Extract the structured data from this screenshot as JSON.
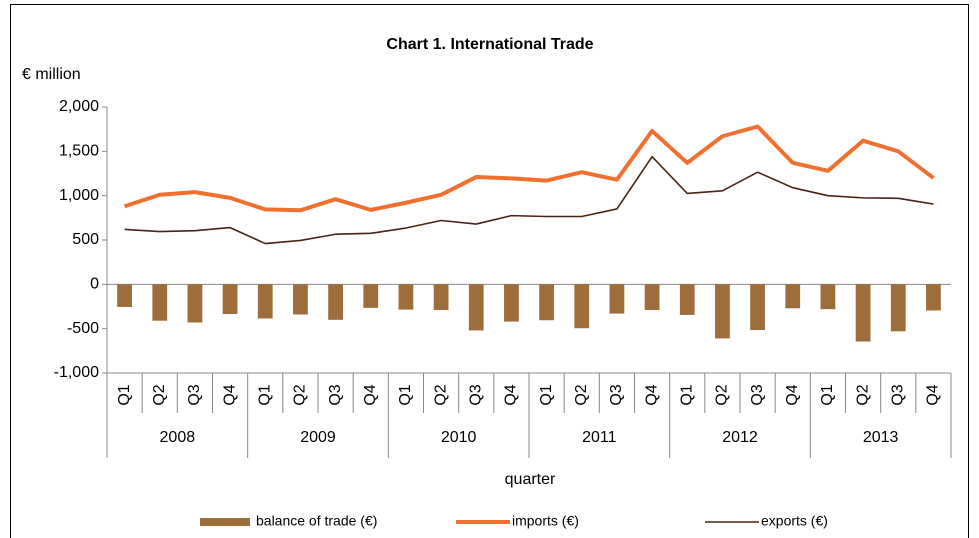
{
  "chart_data": {
    "type": "bar-line",
    "title": "Chart 1.  International Trade",
    "y_unit": "€ million",
    "x_label": "quarter",
    "categories": [
      "Q1",
      "Q2",
      "Q3",
      "Q4",
      "Q1",
      "Q2",
      "Q3",
      "Q4",
      "Q1",
      "Q2",
      "Q3",
      "Q4",
      "Q1",
      "Q2",
      "Q3",
      "Q4",
      "Q1",
      "Q2",
      "Q3",
      "Q4",
      "Q1",
      "Q2",
      "Q3",
      "Q4"
    ],
    "groups": [
      "2008",
      "2009",
      "2010",
      "2011",
      "2012",
      "2013"
    ],
    "series": [
      {
        "name": "balance of trade (€)",
        "type": "bar",
        "color": "#9e6d3c",
        "values": [
          -255,
          -410,
          -430,
          -335,
          -385,
          -340,
          -400,
          -265,
          -285,
          -290,
          -520,
          -420,
          -405,
          -495,
          -330,
          -290,
          -345,
          -610,
          -515,
          -270,
          -280,
          -645,
          -530,
          -295
        ]
      },
      {
        "name": "imports (€)",
        "type": "line",
        "color": "#f07030",
        "values": [
          880,
          1010,
          1040,
          975,
          845,
          835,
          960,
          840,
          920,
          1010,
          1210,
          1195,
          1170,
          1265,
          1180,
          1730,
          1370,
          1670,
          1780,
          1370,
          1280,
          1620,
          1500,
          1200
        ]
      },
      {
        "name": "exports (€)",
        "type": "line",
        "color": "#4a2413",
        "values": [
          620,
          595,
          605,
          640,
          460,
          495,
          565,
          575,
          635,
          720,
          680,
          775,
          765,
          765,
          850,
          1440,
          1025,
          1055,
          1265,
          1090,
          1000,
          975,
          970,
          905
        ]
      }
    ],
    "ylim": [
      -1000,
      2000
    ],
    "yticks": [
      {
        "value": 2000,
        "label": "2,000"
      },
      {
        "value": 1500,
        "label": "1,500"
      },
      {
        "value": 1000,
        "label": "1,000"
      },
      500,
      0,
      -500,
      {
        "value": -1000,
        "label": "-1,000"
      }
    ],
    "grid": false
  }
}
